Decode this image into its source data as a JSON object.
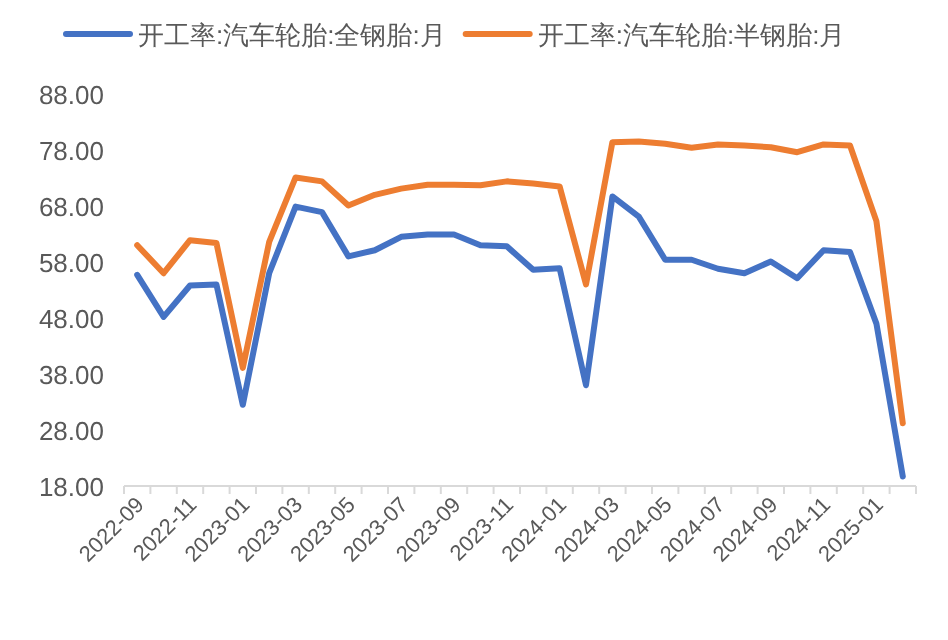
{
  "chart_data": {
    "type": "line",
    "categories": [
      "2022-09",
      null,
      "2022-11",
      null,
      "2023-01",
      null,
      "2023-03",
      null,
      "2023-05",
      null,
      "2023-07",
      null,
      "2023-09",
      null,
      "2023-11",
      null,
      "2024-01",
      null,
      "2024-03",
      null,
      "2024-05",
      null,
      "2024-07",
      null,
      "2024-09",
      null,
      "2024-11",
      null,
      "2025-01",
      null
    ],
    "series": [
      {
        "name": "开工率:汽车轮胎:全钢胎:月",
        "color": "#4472c4",
        "values": [
          55.7,
          48.2,
          53.8,
          54.0,
          32.5,
          56.0,
          67.9,
          66.9,
          59.0,
          60.1,
          62.5,
          62.9,
          62.9,
          61.0,
          60.8,
          56.6,
          56.9,
          36.0,
          69.7,
          66.1,
          58.4,
          58.4,
          56.8,
          56.0,
          58.1,
          55.1,
          60.1,
          59.8,
          47.0,
          19.7
        ]
      },
      {
        "name": "开工率:汽车轮胎:半钢胎:月",
        "color": "#ed7d31",
        "values": [
          61.0,
          56.0,
          61.9,
          61.4,
          39.1,
          61.6,
          73.1,
          72.4,
          68.1,
          70.0,
          71.1,
          71.8,
          71.8,
          71.7,
          72.4,
          72.0,
          71.5,
          54.0,
          79.4,
          79.5,
          79.1,
          78.4,
          79.0,
          78.8,
          78.5,
          77.6,
          79.0,
          78.8,
          65.3,
          29.2
        ]
      }
    ],
    "ylim": [
      18,
      88
    ],
    "yticks": [
      {
        "value": 18,
        "label": "18.00"
      },
      {
        "value": 28,
        "label": "28.00"
      },
      {
        "value": 38,
        "label": "38.00"
      },
      {
        "value": 48,
        "label": "48.00"
      },
      {
        "value": 58,
        "label": "58.00"
      },
      {
        "value": 68,
        "label": "68.00"
      },
      {
        "value": 78,
        "label": "78.00"
      },
      {
        "value": 88,
        "label": "88.00"
      }
    ],
    "legend": "top",
    "grid": false,
    "marker": "none",
    "line_style": "solid"
  }
}
